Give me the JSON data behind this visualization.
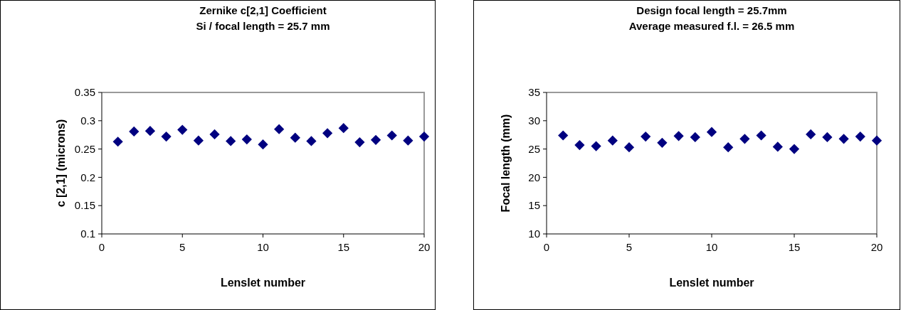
{
  "chart_data": [
    {
      "type": "scatter",
      "title": "Zernike c[2,1] Coefficient\nSi / focal length = 25.7 mm",
      "xlabel": "Lenslet number",
      "ylabel": "c [2,1] (microns)",
      "marker": "diamond",
      "grid": false,
      "x": [
        1,
        2,
        3,
        4,
        5,
        6,
        7,
        8,
        9,
        10,
        11,
        12,
        13,
        14,
        15,
        16,
        17,
        18,
        19,
        20
      ],
      "series": [
        {
          "color": "#000080",
          "values": [
            0.263,
            0.281,
            0.282,
            0.272,
            0.284,
            0.265,
            0.276,
            0.264,
            0.267,
            0.258,
            0.285,
            0.27,
            0.264,
            0.278,
            0.287,
            0.262,
            0.266,
            0.274,
            0.265,
            0.272
          ]
        }
      ],
      "xlim": [
        0,
        20
      ],
      "xticks": [
        0,
        5,
        10,
        15,
        20
      ],
      "ylim": [
        0.1,
        0.35
      ],
      "yticks": [
        0.1,
        0.15,
        0.2,
        0.25,
        0.3,
        0.35
      ]
    },
    {
      "type": "scatter",
      "title": "Design focal length = 25.7mm\nAverage measured f.l. = 26.5 mm",
      "xlabel": "Lenslet number",
      "ylabel": "Focal length (mm)",
      "marker": "diamond",
      "grid": false,
      "x": [
        1,
        2,
        3,
        4,
        5,
        6,
        7,
        8,
        9,
        10,
        11,
        12,
        13,
        14,
        15,
        16,
        17,
        18,
        19,
        20
      ],
      "series": [
        {
          "color": "#000080",
          "values": [
            27.4,
            25.7,
            25.5,
            26.5,
            25.3,
            27.2,
            26.1,
            27.3,
            27.1,
            28.0,
            25.3,
            26.8,
            27.4,
            25.4,
            25.0,
            27.6,
            27.1,
            26.8,
            27.2,
            26.5
          ]
        }
      ],
      "xlim": [
        0,
        20
      ],
      "xticks": [
        0,
        5,
        10,
        15,
        20
      ],
      "ylim": [
        10,
        35
      ],
      "yticks": [
        10,
        15,
        20,
        25,
        30,
        35
      ]
    }
  ]
}
